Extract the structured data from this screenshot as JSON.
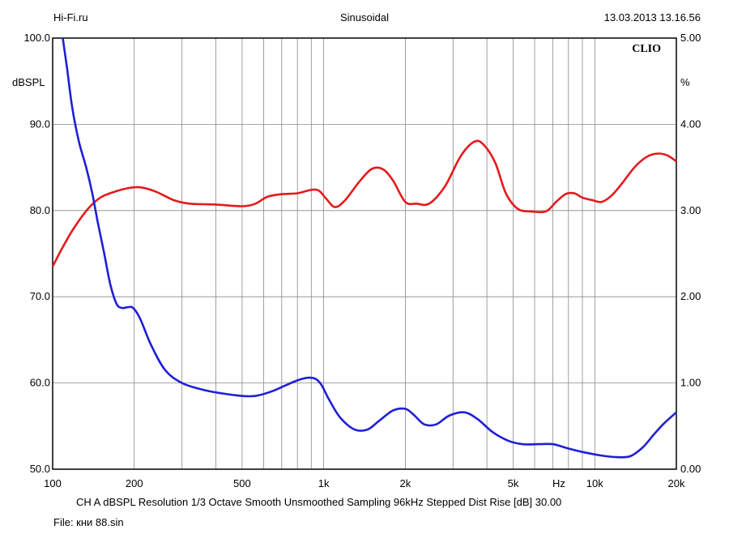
{
  "header": {
    "left": "Hi-Fi.ru",
    "center": "Sinusoidal",
    "right": "13.03.2013 13.16.56"
  },
  "logo": "CLIO",
  "footer": {
    "settings": "CH A   dBSPL   Resolution 1/3 Octave   Smooth Unsmoothed   Sampling 96kHz   Stepped   Dist Rise [dB] 30.00",
    "file": "File: кни 88.sin"
  },
  "colors": {
    "series_primary": "#e41a1c",
    "series_secondary": "#1f1fd6",
    "grid": "#888888"
  },
  "chart_data": {
    "type": "line",
    "x_scale": "log",
    "xlim": [
      100,
      20000
    ],
    "ylim": [
      50,
      100
    ],
    "ylim_right": [
      0,
      5
    ],
    "grid": true,
    "y_left_unit": "dBSPL",
    "y_right_unit": "%",
    "x_unit": "Hz",
    "x_ticks": [
      {
        "value": 100,
        "label": "100"
      },
      {
        "value": 200,
        "label": "200"
      },
      {
        "value": 500,
        "label": "500"
      },
      {
        "value": 1000,
        "label": "1k"
      },
      {
        "value": 2000,
        "label": "2k"
      },
      {
        "value": 5000,
        "label": "5k"
      },
      {
        "value": 10000,
        "label": "10k"
      },
      {
        "value": 20000,
        "label": "20k"
      }
    ],
    "y_ticks_left": [
      "100.0",
      "90.0",
      "80.0",
      "70.0",
      "60.0",
      "50.0"
    ],
    "y_ticks_right": [
      "5.00",
      "4.00",
      "3.00",
      "2.00",
      "1.00",
      "0.00"
    ],
    "series": [
      {
        "axis": "left",
        "color": "#e41a1c",
        "x": [
          100,
          110,
          120,
          135,
          150,
          170,
          190,
          210,
          240,
          280,
          320,
          400,
          500,
          560,
          620,
          700,
          800,
          900,
          960,
          1020,
          1100,
          1200,
          1350,
          1500,
          1650,
          1800,
          2000,
          2200,
          2450,
          2800,
          3200,
          3600,
          3900,
          4300,
          4700,
          5200,
          5800,
          6600,
          7200,
          7800,
          8400,
          9000,
          9800,
          10600,
          11500,
          12500,
          14000,
          15500,
          17000,
          18500,
          20000
        ],
        "y": [
          73.5,
          76.0,
          78.0,
          80.2,
          81.5,
          82.2,
          82.6,
          82.7,
          82.2,
          81.2,
          80.8,
          80.7,
          80.5,
          80.8,
          81.6,
          81.9,
          82.0,
          82.4,
          82.3,
          81.4,
          80.4,
          81.2,
          83.3,
          84.8,
          84.8,
          83.5,
          81.0,
          80.8,
          80.8,
          82.8,
          86.3,
          88.0,
          87.6,
          85.5,
          82.0,
          80.2,
          79.9,
          79.9,
          81.0,
          81.9,
          82.0,
          81.5,
          81.2,
          81.0,
          81.7,
          83.0,
          85.0,
          86.2,
          86.6,
          86.4,
          85.7
        ]
      },
      {
        "axis": "left",
        "color": "#1f1fd6",
        "x": [
          109,
          113,
          118,
          125,
          133,
          140,
          147,
          155,
          163,
          172,
          180,
          190,
          198,
          210,
          230,
          260,
          300,
          360,
          420,
          500,
          560,
          640,
          720,
          800,
          870,
          930,
          980,
          1050,
          1150,
          1300,
          1450,
          1600,
          1800,
          2000,
          2150,
          2350,
          2600,
          2900,
          3300,
          3700,
          4200,
          4800,
          5400,
          6200,
          7000,
          8000,
          9000,
          10500,
          12000,
          13500,
          15000,
          16500,
          18000,
          20000
        ],
        "y": [
          100.0,
          96.5,
          92.0,
          88.0,
          85.0,
          82.0,
          78.5,
          75.0,
          71.5,
          69.2,
          68.7,
          68.8,
          68.7,
          67.5,
          64.5,
          61.5,
          60.0,
          59.2,
          58.8,
          58.5,
          58.5,
          59.0,
          59.7,
          60.3,
          60.6,
          60.5,
          59.8,
          58.0,
          56.0,
          54.6,
          54.6,
          55.6,
          56.8,
          57.0,
          56.3,
          55.2,
          55.2,
          56.2,
          56.6,
          55.8,
          54.3,
          53.3,
          52.9,
          52.9,
          52.9,
          52.4,
          52.0,
          51.6,
          51.4,
          51.5,
          52.5,
          54.0,
          55.3,
          56.6
        ]
      }
    ]
  }
}
